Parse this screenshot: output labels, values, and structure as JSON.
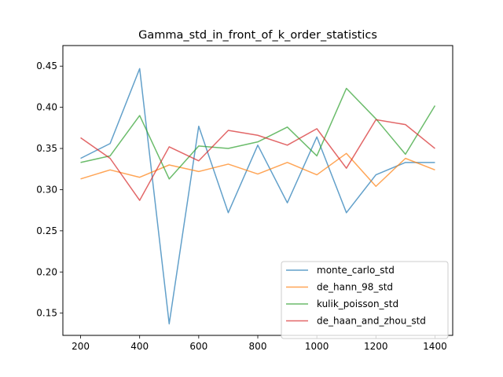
{
  "chart_data": {
    "type": "line",
    "title": "Gamma_std_in_front_of_k_order_statistics",
    "xlabel": "",
    "ylabel": "",
    "x": [
      200,
      300,
      400,
      500,
      600,
      700,
      800,
      900,
      1000,
      1100,
      1200,
      1300,
      1400
    ],
    "xlim": [
      140,
      1460
    ],
    "ylim": [
      0.123,
      0.475
    ],
    "xticks": [
      200,
      400,
      600,
      800,
      1000,
      1200,
      1400
    ],
    "xtick_labels": [
      "200",
      "400",
      "600",
      "800",
      "1000",
      "1200",
      "1400"
    ],
    "yticks": [
      0.15,
      0.2,
      0.25,
      0.3,
      0.35,
      0.4,
      0.45
    ],
    "ytick_labels": [
      "0.15",
      "0.20",
      "0.25",
      "0.30",
      "0.35",
      "0.40",
      "0.45"
    ],
    "grid": false,
    "legend_position": "lower-right",
    "series": [
      {
        "name": "monte_carlo_std",
        "color": "#1f77b4",
        "values": [
          0.338,
          0.356,
          0.447,
          0.137,
          0.377,
          0.272,
          0.354,
          0.284,
          0.364,
          0.272,
          0.318,
          0.333,
          0.333
        ]
      },
      {
        "name": "de_hann_98_std",
        "color": "#ff7f0e",
        "values": [
          0.313,
          0.324,
          0.315,
          0.33,
          0.322,
          0.331,
          0.319,
          0.333,
          0.318,
          0.344,
          0.304,
          0.338,
          0.324
        ]
      },
      {
        "name": "kulik_poisson_std",
        "color": "#2ca02c",
        "values": [
          0.333,
          0.341,
          0.39,
          0.313,
          0.353,
          0.35,
          0.358,
          0.376,
          0.341,
          0.423,
          0.386,
          0.343,
          0.402
        ]
      },
      {
        "name": "de_haan_and_zhou_std",
        "color": "#d62728",
        "values": [
          0.363,
          0.338,
          0.287,
          0.352,
          0.335,
          0.372,
          0.366,
          0.354,
          0.374,
          0.326,
          0.385,
          0.379,
          0.35
        ]
      }
    ]
  }
}
